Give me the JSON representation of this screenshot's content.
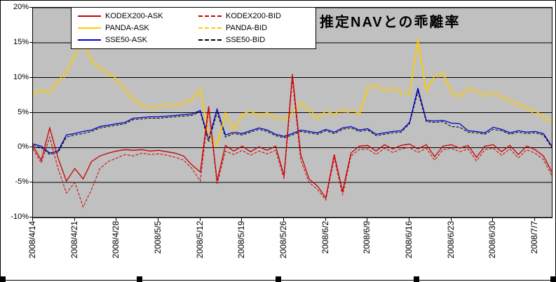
{
  "figure": {
    "title": "推定NAVとの乖離率",
    "background": "#ffffff",
    "plot_background": "#c0c0c0"
  },
  "legend": {
    "items": [
      {
        "label": "KODEX200-ASK",
        "color": "#cc0000",
        "dash": false
      },
      {
        "label": "KODEX200-BID",
        "color": "#cc0000",
        "dash": true
      },
      {
        "label": "PANDA-ASK",
        "color": "#ffcc00",
        "dash": false
      },
      {
        "label": "PANDA-BID",
        "color": "#ffcc00",
        "dash": true
      },
      {
        "label": "SSE50-ASK",
        "color": "#0000cc",
        "dash": false
      },
      {
        "label": "SSE50-BID",
        "color": "#000000",
        "dash": true
      }
    ]
  },
  "axes": {
    "y_ticks": [
      "20%",
      "15%",
      "10%",
      "5%",
      "0%",
      "-5%",
      "-10%"
    ],
    "y_tick_values": [
      20,
      15,
      10,
      5,
      0,
      -5,
      -10
    ],
    "x_ticks": [
      "2008/4/14",
      "2008/4/21",
      "2008/4/28",
      "2008/5/5",
      "2008/5/12",
      "2008/5/19",
      "2008/5/26",
      "2008/6/2",
      "2008/6/9",
      "2008/6/16",
      "2008/6/23",
      "2008/6/30",
      "2008/7/7"
    ],
    "x_tick_indices": [
      0,
      5,
      10,
      15,
      20,
      25,
      30,
      35,
      40,
      45,
      50,
      55,
      60
    ]
  },
  "chart_data": {
    "type": "line",
    "title": "推定NAVとの乖離率",
    "xlabel": "",
    "ylabel": "",
    "y_unit": "%",
    "ylim": [
      -10,
      20
    ],
    "grid": true,
    "legend_position": "top-inside",
    "plot_bg": "#c0c0c0",
    "x": [
      "2008/4/14",
      "2008/4/15",
      "2008/4/16",
      "2008/4/17",
      "2008/4/18",
      "2008/4/21",
      "2008/4/22",
      "2008/4/23",
      "2008/4/24",
      "2008/4/25",
      "2008/4/28",
      "2008/4/29",
      "2008/4/30",
      "2008/5/1",
      "2008/5/2",
      "2008/5/5",
      "2008/5/6",
      "2008/5/7",
      "2008/5/8",
      "2008/5/9",
      "2008/5/12",
      "2008/5/13",
      "2008/5/14",
      "2008/5/15",
      "2008/5/16",
      "2008/5/19",
      "2008/5/20",
      "2008/5/21",
      "2008/5/22",
      "2008/5/23",
      "2008/5/26",
      "2008/5/27",
      "2008/5/28",
      "2008/5/29",
      "2008/5/30",
      "2008/6/2",
      "2008/6/3",
      "2008/6/4",
      "2008/6/5",
      "2008/6/6",
      "2008/6/9",
      "2008/6/10",
      "2008/6/11",
      "2008/6/12",
      "2008/6/13",
      "2008/6/16",
      "2008/6/17",
      "2008/6/18",
      "2008/6/19",
      "2008/6/20",
      "2008/6/23",
      "2008/6/24",
      "2008/6/25",
      "2008/6/26",
      "2008/6/27",
      "2008/6/30",
      "2008/7/1",
      "2008/7/2",
      "2008/7/3",
      "2008/7/4",
      "2008/7/7",
      "2008/7/8",
      "2008/7/9"
    ],
    "series": [
      {
        "name": "KODEX200-ASK",
        "color": "#cc0000",
        "style": "solid",
        "values": [
          0.2,
          -1.8,
          2.8,
          -1.5,
          -4.8,
          -3.0,
          -4.5,
          -2.0,
          -1.2,
          -0.8,
          -0.5,
          -0.3,
          -0.4,
          -0.3,
          -0.5,
          -0.4,
          -0.6,
          -0.8,
          -1.2,
          -2.5,
          -3.5,
          5.9,
          -4.8,
          0.3,
          -0.5,
          0.2,
          -0.6,
          0.1,
          -0.4,
          0.2,
          -4.0,
          10.5,
          -1.0,
          -4.5,
          -5.5,
          -7.2,
          -1.0,
          -6.3,
          -0.8,
          0.2,
          0.3,
          -0.5,
          0.4,
          -0.2,
          0.3,
          0.5,
          -0.2,
          0.4,
          -1.3,
          0.2,
          0.4,
          -0.1,
          0.3,
          -1.4,
          0.2,
          0.4,
          -0.6,
          0.3,
          -1.0,
          0.2,
          -0.3,
          -1.2,
          -3.5
        ]
      },
      {
        "name": "KODEX200-BID",
        "color": "#cc0000",
        "style": "dashed",
        "values": [
          -0.2,
          -2.2,
          1.5,
          -3.0,
          -6.5,
          -5.0,
          -8.5,
          -6.0,
          -3.0,
          -2.0,
          -1.5,
          -1.0,
          -1.2,
          -0.8,
          -1.0,
          -0.9,
          -1.1,
          -1.4,
          -1.8,
          -3.0,
          -4.8,
          5.5,
          -5.2,
          -0.5,
          -1.0,
          -0.4,
          -1.1,
          -0.5,
          -0.9,
          -0.4,
          -4.5,
          9.8,
          -1.8,
          -5.0,
          -6.0,
          -7.5,
          -1.5,
          -6.8,
          -1.2,
          -0.3,
          -0.2,
          -1.0,
          -0.1,
          -0.7,
          -0.2,
          0.0,
          -0.7,
          -0.1,
          -1.8,
          -0.3,
          -0.1,
          -0.6,
          -0.2,
          -1.9,
          -0.3,
          -0.1,
          -1.1,
          -0.2,
          -1.5,
          -0.3,
          -0.8,
          -1.7,
          -4.0
        ]
      },
      {
        "name": "PANDA-ASK",
        "color": "#ffcc00",
        "style": "solid",
        "values": [
          7.8,
          8.3,
          8.0,
          9.5,
          11.0,
          13.5,
          15.2,
          12.5,
          11.5,
          10.8,
          9.8,
          8.5,
          7.0,
          6.2,
          5.8,
          6.0,
          6.3,
          6.1,
          6.5,
          7.0,
          8.4,
          2.0,
          0.5,
          5.0,
          2.6,
          4.8,
          5.2,
          4.6,
          5.0,
          4.4,
          4.2,
          5.0,
          6.5,
          5.5,
          4.3,
          5.2,
          4.8,
          5.5,
          5.3,
          4.9,
          8.7,
          9.0,
          8.3,
          8.6,
          8.0,
          7.8,
          15.6,
          8.2,
          10.3,
          10.8,
          8.0,
          7.4,
          8.6,
          8.2,
          7.6,
          8.0,
          7.4,
          6.8,
          6.3,
          5.8,
          5.2,
          4.6,
          3.8
        ]
      },
      {
        "name": "PANDA-BID",
        "color": "#ffcc00",
        "style": "dashed",
        "values": [
          7.5,
          8.0,
          7.6,
          9.0,
          10.4,
          12.8,
          14.6,
          12.0,
          11.0,
          10.3,
          9.3,
          8.0,
          6.6,
          5.8,
          5.4,
          5.6,
          5.9,
          5.7,
          6.1,
          6.6,
          8.0,
          1.2,
          0.0,
          4.4,
          2.2,
          4.4,
          4.8,
          4.2,
          4.6,
          4.0,
          3.8,
          4.6,
          6.0,
          5.1,
          3.9,
          4.8,
          4.4,
          5.1,
          4.9,
          4.5,
          8.2,
          8.6,
          7.9,
          8.2,
          7.6,
          7.4,
          14.9,
          7.8,
          9.8,
          10.3,
          7.6,
          7.0,
          8.2,
          7.8,
          7.2,
          7.6,
          7.0,
          6.4,
          5.9,
          5.4,
          4.8,
          4.2,
          3.4
        ]
      },
      {
        "name": "SSE50-ASK",
        "color": "#0000cc",
        "style": "solid",
        "values": [
          0.5,
          0.2,
          -0.8,
          -0.5,
          1.8,
          2.0,
          2.3,
          2.5,
          3.0,
          3.2,
          3.4,
          3.6,
          4.2,
          4.3,
          4.4,
          4.4,
          4.5,
          4.6,
          4.7,
          4.8,
          5.3,
          1.2,
          5.5,
          1.8,
          2.2,
          2.0,
          2.4,
          2.8,
          2.5,
          1.9,
          1.6,
          2.0,
          2.5,
          2.3,
          2.1,
          2.6,
          2.2,
          2.8,
          3.0,
          2.5,
          2.7,
          1.9,
          2.1,
          2.3,
          2.4,
          3.6,
          8.5,
          3.9,
          3.8,
          3.9,
          3.5,
          3.4,
          2.4,
          2.3,
          2.1,
          2.9,
          2.6,
          2.1,
          2.4,
          2.2,
          2.3,
          2.0,
          0.2
        ]
      },
      {
        "name": "SSE50-BID",
        "color": "#000000",
        "style": "dashed",
        "values": [
          0.3,
          0.0,
          -1.0,
          -0.7,
          1.5,
          1.8,
          2.0,
          2.3,
          2.8,
          3.0,
          3.2,
          3.4,
          4.0,
          4.1,
          4.2,
          4.2,
          4.3,
          4.4,
          4.5,
          4.6,
          5.1,
          0.8,
          5.0,
          1.5,
          2.0,
          1.8,
          2.2,
          2.6,
          2.3,
          1.7,
          1.4,
          1.8,
          2.3,
          2.1,
          1.9,
          2.4,
          2.0,
          2.6,
          2.8,
          2.3,
          2.5,
          1.7,
          1.9,
          2.1,
          2.2,
          3.4,
          8.0,
          3.7,
          3.6,
          3.7,
          3.0,
          2.9,
          2.2,
          2.1,
          1.9,
          2.6,
          2.4,
          1.9,
          2.2,
          2.0,
          2.1,
          1.8,
          0.0
        ]
      }
    ]
  }
}
